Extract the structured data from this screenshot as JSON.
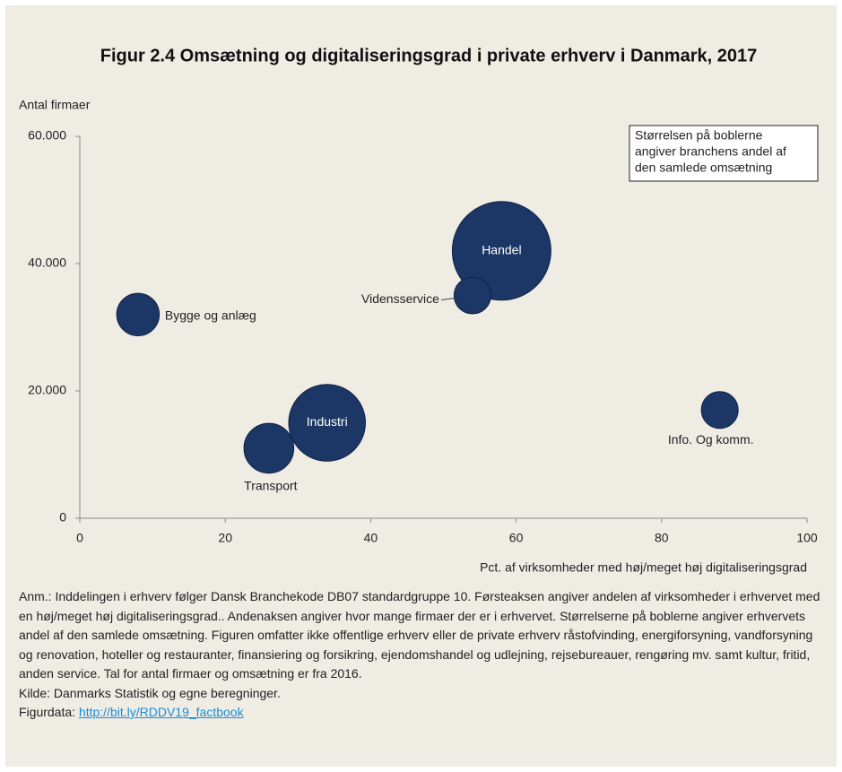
{
  "chart_data": {
    "type": "bubble",
    "title": "Figur 2.4 Omsætning og digitaliseringsgrad i private erhverv i Danmark, 2017",
    "y_label": "Antal firmaer",
    "x_label": "Pct. af virksomheder med høj/meget høj digitaliseringsgrad",
    "annotation": [
      "Størrelsen på boblerne",
      "angiver branchens andel af",
      "den samlede omsætning"
    ],
    "categories": [
      "Bygge og anlæg",
      "Transport",
      "Industri",
      "Handel",
      "Vidensservice",
      "Info. Og komm."
    ],
    "x": [
      8,
      26,
      34,
      58,
      54,
      88
    ],
    "values": [
      32000,
      11000,
      15000,
      42000,
      35000,
      17000
    ],
    "sizes": [
      8,
      11,
      26,
      43,
      6,
      6
    ],
    "color": "#1c3766",
    "xlim": [
      0,
      100
    ],
    "xticks": [
      0,
      20,
      40,
      60,
      80,
      100
    ],
    "ylim": [
      0,
      60000
    ],
    "yticks": [
      0,
      {
        "value": 20000,
        "label": "20.000"
      },
      {
        "value": 40000,
        "label": "40.000"
      },
      {
        "value": 60000,
        "label": "60.000"
      }
    ],
    "grid": false
  },
  "notes": {
    "text": "Anm.: Inddelingen i erhverv følger Dansk Branchekode DB07 standardgruppe 10. Førsteaksen angiver andelen af virksomheder i erhvervet med en høj/meget høj digitaliseringsgrad.. Andenaksen angiver hvor mange firmaer der er i erhvervet. Størrelserne på boblerne angiver erhvervets andel af den samlede omsætning. Figuren omfatter ikke offentlige erhverv eller de private erhverv råstofvinding, energiforsyning, vandforsyning og renovation, hoteller og restauranter, finansiering og forsikring, ejendomshandel og udlejning, rejsebureauer, rengøring mv. samt kultur, fritid, anden service. Tal for antal firmaer og omsætning er fra 2016.",
    "source": "Kilde: Danmarks Statistik og egne beregninger.",
    "figurdata_label": "Figurdata:",
    "link": "http://bit.ly/RDDV19_factbook"
  }
}
